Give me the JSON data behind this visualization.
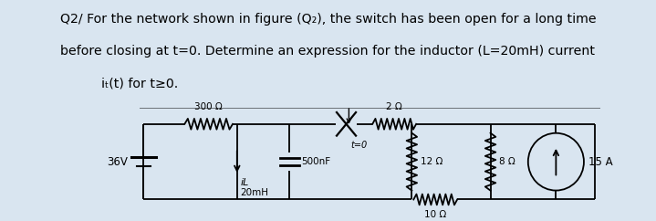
{
  "bg_color": "#d9e5f0",
  "text1": "Q2/ For the network shown in figure (Q₂), the switch has been open for a long time",
  "text2": "before closing at t=0. Determine an expression for the inductor (L=20mH) current",
  "text3": "iₜ(t) for t≥0.",
  "font_size": 10.2,
  "lw": 1.3
}
